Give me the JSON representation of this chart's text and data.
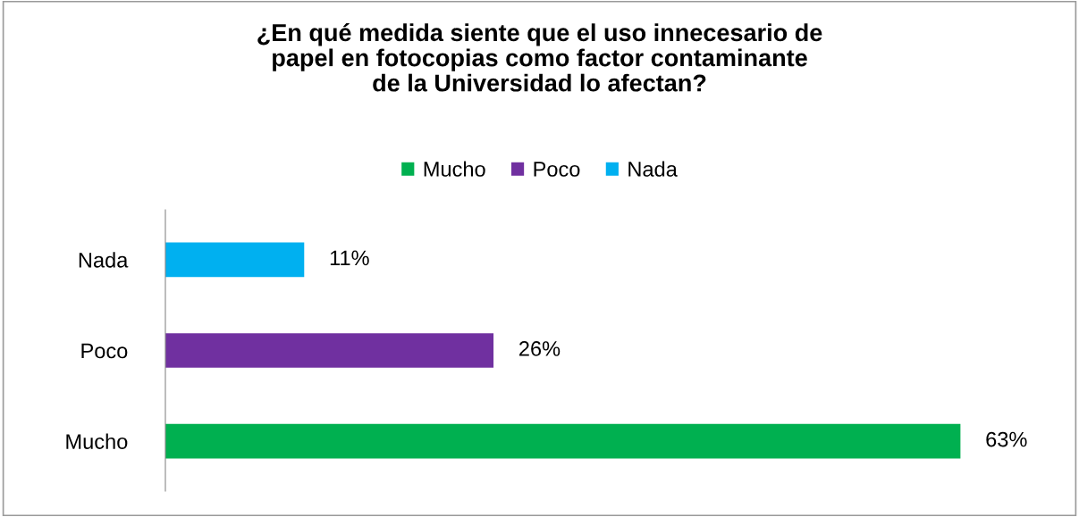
{
  "chart_data": {
    "type": "bar",
    "orientation": "horizontal",
    "stacked": true,
    "title": "¿En qué medida siente que el uso innecesario de\npapel en fotocopias como factor contaminante\nde la Universidad lo afectan?",
    "categories": [
      "Nada",
      "Poco",
      "Mucho"
    ],
    "series": [
      {
        "name": "Mucho",
        "color": "#00b050",
        "values": [
          null,
          null,
          63
        ],
        "value_labels": [
          null,
          null,
          "63%"
        ]
      },
      {
        "name": "Poco",
        "color": "#7030a0",
        "values": [
          null,
          26,
          null
        ],
        "value_labels": [
          null,
          "26%",
          null
        ]
      },
      {
        "name": "Nada",
        "color": "#00b0f0",
        "values": [
          11,
          null,
          null
        ],
        "value_labels": [
          "11%",
          null,
          null
        ]
      }
    ],
    "legend": "top",
    "grid": false
  }
}
